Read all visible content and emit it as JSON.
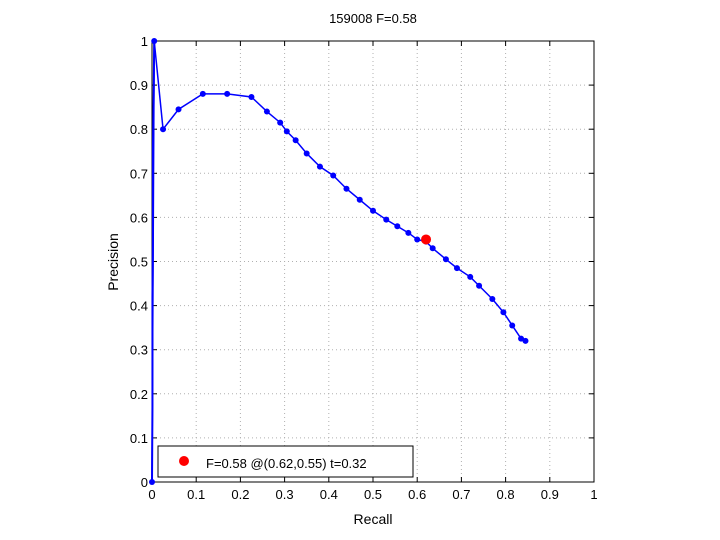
{
  "chart_data": {
    "type": "line",
    "title": "159008 F=0.58",
    "xlabel": "Recall",
    "ylabel": "Precision",
    "xlim": [
      0,
      1
    ],
    "ylim": [
      0,
      1
    ],
    "grid": true,
    "xticks": [
      "0",
      "0.1",
      "0.2",
      "0.3",
      "0.4",
      "0.5",
      "0.6",
      "0.7",
      "0.8",
      "0.9",
      "1"
    ],
    "yticks": [
      "0",
      "0.1",
      "0.2",
      "0.3",
      "0.4",
      "0.5",
      "0.6",
      "0.7",
      "0.8",
      "0.9",
      "1"
    ],
    "colors": {
      "curve": "#0000ff",
      "best": "#ff0000",
      "grid": "#b0b0b0",
      "axes": "#000000"
    },
    "series": [
      {
        "x": [
          0,
          0.005,
          0.025,
          0.06,
          0.115,
          0.17,
          0.225,
          0.26,
          0.29,
          0.305,
          0.325,
          0.35,
          0.38,
          0.41,
          0.44,
          0.47,
          0.5,
          0.53,
          0.555,
          0.58,
          0.6,
          0.62,
          0.635,
          0.665,
          0.69,
          0.72,
          0.74,
          0.77,
          0.795,
          0.815,
          0.835,
          0.845
        ],
        "y": [
          0,
          1.0,
          0.8,
          0.845,
          0.88,
          0.88,
          0.873,
          0.84,
          0.815,
          0.795,
          0.775,
          0.745,
          0.715,
          0.695,
          0.665,
          0.64,
          0.615,
          0.595,
          0.58,
          0.565,
          0.55,
          0.545,
          0.53,
          0.505,
          0.485,
          0.465,
          0.445,
          0.415,
          0.385,
          0.355,
          0.325,
          0.32
        ]
      }
    ],
    "left_edge": {
      "x": [
        0,
        0.001,
        0.001,
        0.002,
        0.002,
        0.003,
        0.004,
        0.005
      ],
      "y": [
        0,
        0.17,
        0.42,
        0.55,
        0.75,
        0.82,
        0.9,
        1.0
      ]
    },
    "best_point": {
      "x": 0.62,
      "y": 0.55
    },
    "legend": {
      "label": "F=0.58 @(0.62,0.55) t=0.32",
      "placement": "bottom-left"
    }
  }
}
